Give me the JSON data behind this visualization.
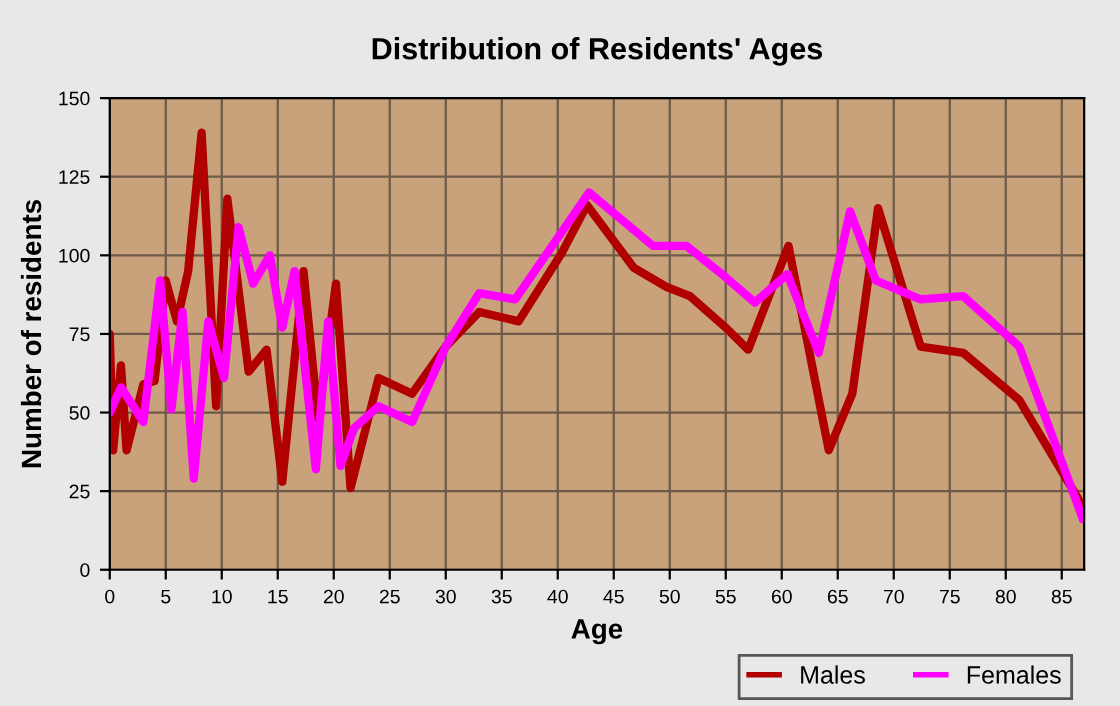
{
  "chart_data": {
    "type": "line",
    "title": "Distribution of Residents' Ages",
    "xlabel": "Age",
    "ylabel": "Number of residents",
    "xlim": [
      0,
      87
    ],
    "xticks": [
      0,
      5,
      10,
      15,
      20,
      25,
      30,
      35,
      40,
      45,
      50,
      55,
      60,
      65,
      70,
      75,
      80,
      85
    ],
    "ylim": [
      0,
      150
    ],
    "yticks": [
      0,
      25,
      50,
      75,
      100,
      125,
      150
    ],
    "grid": true,
    "legend": "bottom right",
    "marker": "none",
    "line_style": "solid",
    "series": [
      {
        "name": "Males",
        "color": "#b00000",
        "x": [
          0,
          0.3,
          1,
          1.5,
          3,
          4,
          5,
          6,
          7,
          8.2,
          9.5,
          10.5,
          12.4,
          14,
          15.4,
          17.3,
          18.6,
          20.2,
          21.5,
          24,
          27,
          30,
          33,
          36.5,
          40.4,
          42.6,
          46.8,
          49.7,
          51.8,
          55,
          57,
          60.6,
          64.2,
          66.3,
          68.6,
          72.4,
          76.2,
          81.2,
          86.9
        ],
        "values": [
          75,
          38,
          65,
          38,
          59,
          60,
          92,
          79,
          95,
          139,
          52,
          118,
          63,
          70,
          28,
          95,
          48,
          91,
          26,
          61,
          56,
          71,
          82,
          79,
          101,
          116,
          96,
          90,
          87,
          77,
          70,
          103,
          38,
          56,
          115,
          71,
          69,
          54,
          20
        ]
      },
      {
        "name": "Females",
        "color": "#ff00ff",
        "x": [
          0,
          1,
          3,
          4.5,
          5.5,
          6.5,
          7.5,
          8.8,
          10.2,
          11.5,
          12.8,
          14.3,
          15.4,
          16.5,
          18.4,
          19.5,
          20.6,
          21.8,
          24,
          27,
          30,
          33,
          36.2,
          42.8,
          48.5,
          51.5,
          55,
          57.6,
          60.5,
          63.3,
          66.1,
          68.4,
          72.4,
          76.2,
          81.2,
          86.9
        ],
        "values": [
          50,
          58,
          47,
          92,
          51,
          82,
          29,
          79,
          61,
          109,
          91,
          100,
          77,
          95,
          32,
          79,
          33,
          45,
          52,
          47,
          71,
          88,
          86,
          120,
          103,
          103,
          93,
          85,
          94,
          69,
          114,
          92,
          86,
          87,
          71,
          16
        ]
      }
    ]
  }
}
